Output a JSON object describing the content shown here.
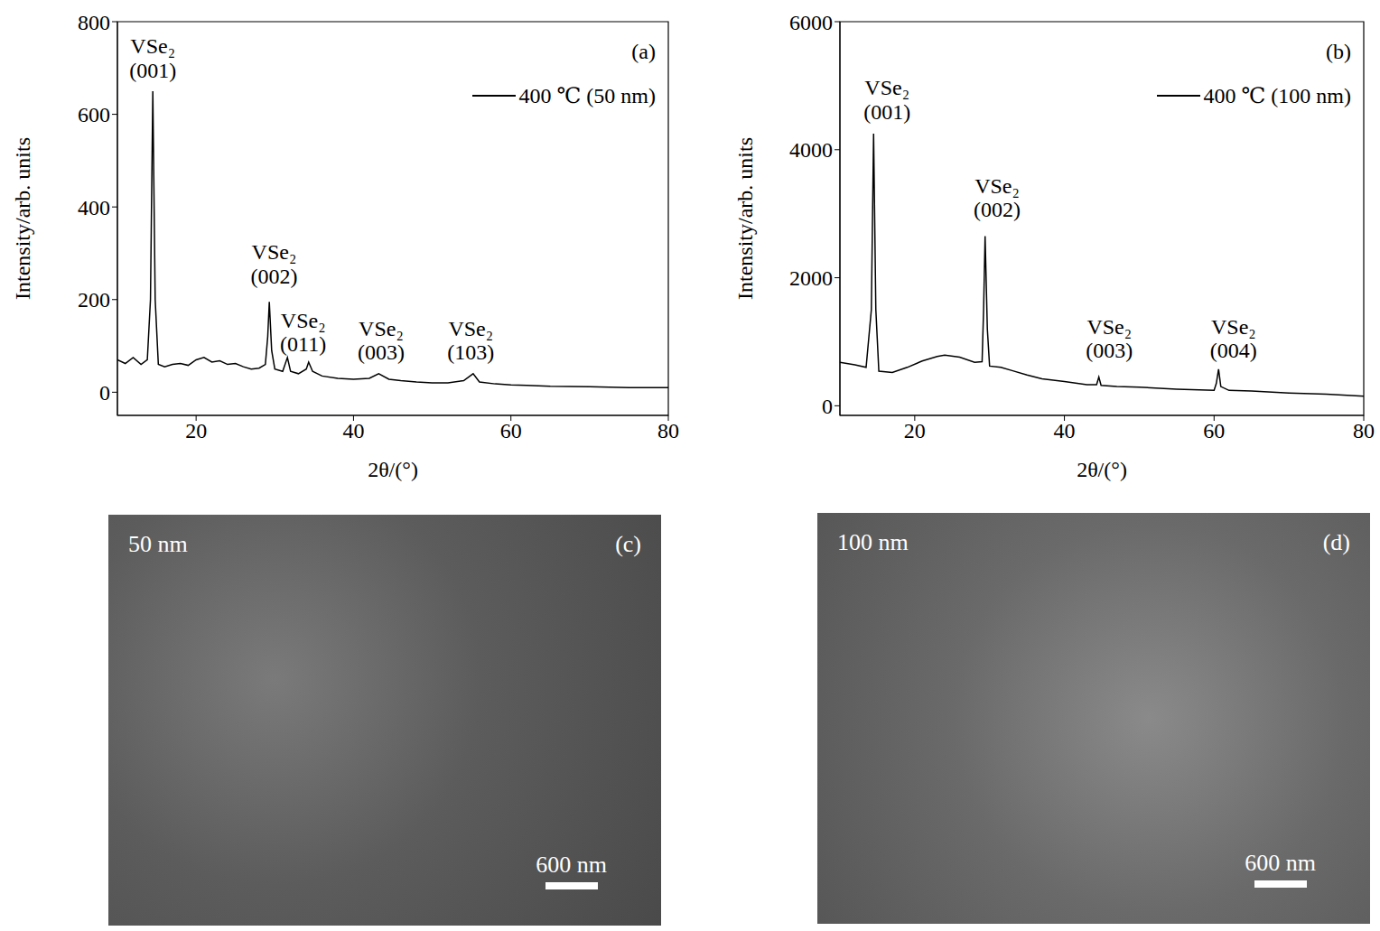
{
  "chart_data": [
    {
      "type": "line",
      "panel": "(a)",
      "xlabel": "2θ/(°)",
      "ylabel": "Intensity/arb. units",
      "xlim": [
        10,
        80
      ],
      "xticks": [
        20,
        40,
        60,
        80
      ],
      "ylim": [
        -50,
        800
      ],
      "yticks": [
        0,
        200,
        400,
        600,
        800
      ],
      "legend": "upper right",
      "grid": false,
      "x": [
        10,
        11,
        12,
        13,
        13.8,
        14.2,
        14.5,
        14.8,
        15.2,
        16,
        17,
        18,
        19,
        20,
        21,
        22,
        23,
        24,
        25,
        26,
        27,
        28,
        28.8,
        29.1,
        29.3,
        29.6,
        30,
        31,
        31.6,
        32,
        33,
        34,
        34.3,
        34.8,
        36,
        38,
        40,
        42,
        43.2,
        44.5,
        46,
        48,
        50,
        52,
        54,
        55.2,
        56,
        58,
        60,
        62,
        65,
        70,
        75,
        80
      ],
      "series": [
        {
          "name": "400 ℃ (50 nm)",
          "color": "#000000",
          "values": [
            70,
            62,
            75,
            60,
            70,
            200,
            650,
            200,
            60,
            55,
            60,
            62,
            58,
            70,
            75,
            65,
            68,
            60,
            62,
            55,
            50,
            52,
            60,
            120,
            195,
            90,
            50,
            45,
            75,
            45,
            40,
            50,
            65,
            45,
            35,
            30,
            28,
            30,
            40,
            28,
            25,
            22,
            20,
            20,
            25,
            40,
            22,
            18,
            16,
            15,
            13,
            12,
            10,
            10
          ]
        }
      ],
      "annotations": [
        {
          "text": "VSe₂",
          "hkl": "(001)",
          "x": 14.5,
          "y": 680
        },
        {
          "text": "VSe₂",
          "hkl": "(002)",
          "x": 29.9,
          "y": 235
        },
        {
          "text": "VSe₂",
          "hkl": "(011)",
          "x": 33.6,
          "y": 88
        },
        {
          "text": "VSe₂",
          "hkl": "(003)",
          "x": 43.5,
          "y": 70
        },
        {
          "text": "VSe₂",
          "hkl": "(103)",
          "x": 54.9,
          "y": 70
        }
      ]
    },
    {
      "type": "line",
      "panel": "(b)",
      "xlabel": "2θ/(°)",
      "ylabel": "Intensity/arb. units",
      "xlim": [
        10,
        80
      ],
      "xticks": [
        20,
        40,
        60,
        80
      ],
      "ylim": [
        -150,
        6000
      ],
      "yticks": [
        0,
        2000,
        4000,
        6000
      ],
      "legend": "upper right",
      "grid": false,
      "x": [
        10,
        12,
        13.5,
        14.2,
        14.5,
        14.8,
        15.2,
        17,
        19,
        21,
        23,
        24,
        26,
        28,
        29,
        29.2,
        29.4,
        29.7,
        30,
        31.5,
        33,
        35,
        37,
        40,
        43,
        44.3,
        44.6,
        44.9,
        47,
        50,
        55,
        60,
        60.3,
        60.6,
        60.9,
        62,
        65,
        70,
        75,
        80
      ],
      "series": [
        {
          "name": "400 ℃ (100 nm)",
          "color": "#000000",
          "values": [
            680,
            640,
            600,
            1500,
            4250,
            1500,
            540,
            520,
            600,
            700,
            770,
            790,
            760,
            680,
            690,
            1500,
            2650,
            1200,
            620,
            600,
            550,
            480,
            420,
            380,
            330,
            330,
            450,
            320,
            300,
            290,
            260,
            240,
            350,
            570,
            300,
            240,
            230,
            200,
            180,
            150
          ]
        }
      ],
      "annotations": [
        {
          "text": "VSe₂",
          "hkl": "(001)",
          "x": 16.3,
          "y": 4480
        },
        {
          "text": "VSe₂",
          "hkl": "(002)",
          "x": 31.0,
          "y": 2950
        },
        {
          "text": "VSe₂",
          "hkl": "(003)",
          "x": 46.0,
          "y": 750
        },
        {
          "text": "VSe₂",
          "hkl": "(004)",
          "x": 62.6,
          "y": 750
        }
      ]
    }
  ],
  "images": [
    {
      "panel": "(c)",
      "label": "50 nm",
      "scale_bar": "600 nm"
    },
    {
      "panel": "(d)",
      "label": "100 nm",
      "scale_bar": "600 nm"
    }
  ]
}
